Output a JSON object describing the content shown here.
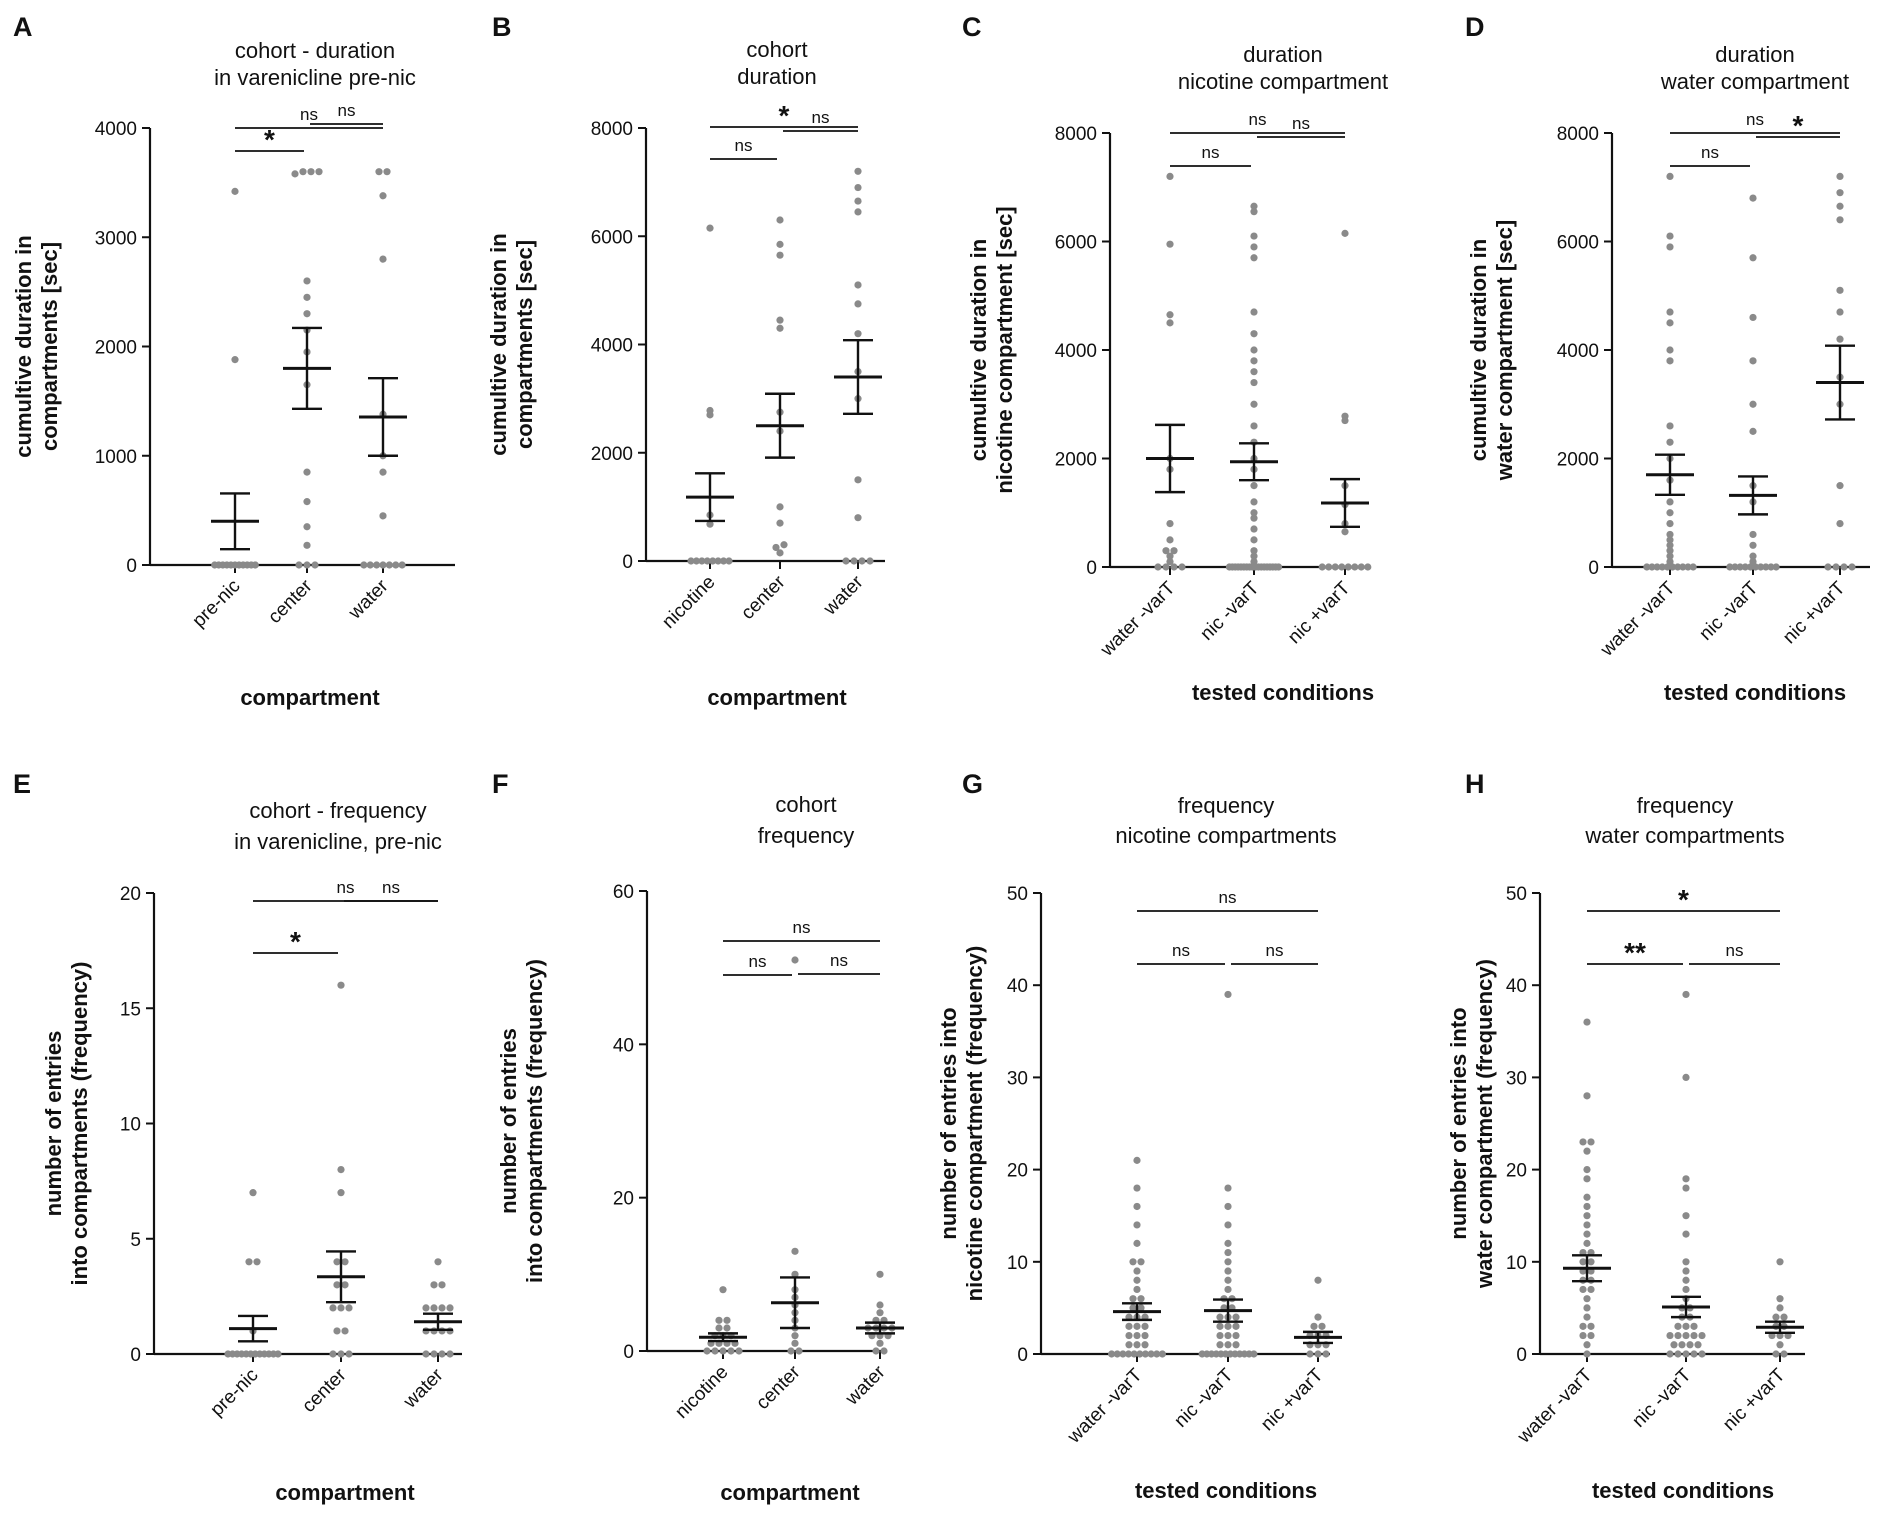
{
  "colors": {
    "axis": "#111111",
    "points": "#8a8a8a",
    "mean_bar": "#111111"
  },
  "chart_data": [
    {
      "panel": "A",
      "type": "scatter",
      "title": [
        "cohort - duration",
        "in varenicline pre-nic"
      ],
      "ylabel": [
        "cumultive duration in",
        "compartments [sec]"
      ],
      "xlabel": "compartment",
      "categories": [
        "pre-nic",
        "center",
        "water"
      ],
      "ylim": [
        0,
        4000
      ],
      "yticks": [
        0,
        1000,
        2000,
        3000,
        4000
      ],
      "points": [
        [
          0,
          0,
          0,
          0,
          0,
          0,
          0,
          0,
          0,
          0,
          0,
          1880,
          3420
        ],
        [
          0,
          0,
          0,
          180,
          350,
          580,
          850,
          1650,
          1950,
          2150,
          2300,
          2450,
          2600,
          3580,
          3600,
          3600,
          3600
        ],
        [
          0,
          0,
          0,
          0,
          0,
          0,
          0,
          450,
          850,
          1000,
          1380,
          2800,
          3380,
          3600,
          3600
        ]
      ],
      "mean": [
        400,
        1800,
        1355
      ],
      "sem": [
        255,
        370,
        355
      ],
      "comparisons": [
        {
          "from": 0,
          "to": 1,
          "label": "*"
        },
        {
          "from": 1,
          "to": 2,
          "label": "ns"
        },
        {
          "from": 0,
          "to": 2,
          "label": "ns"
        }
      ]
    },
    {
      "panel": "B",
      "type": "scatter",
      "title": [
        "cohort",
        "duration"
      ],
      "ylabel": [
        "cumultive duration in",
        "compartments [sec]"
      ],
      "xlabel": "compartment",
      "categories": [
        "nicotine",
        "center",
        "water"
      ],
      "ylim": [
        0,
        8000
      ],
      "yticks": [
        0,
        2000,
        4000,
        6000,
        8000
      ],
      "points": [
        [
          0,
          0,
          0,
          0,
          0,
          0,
          0,
          0,
          680,
          850,
          2700,
          2780,
          6150
        ],
        [
          150,
          250,
          300,
          700,
          1000,
          2400,
          2750,
          4300,
          4450,
          5650,
          5850,
          6300
        ],
        [
          0,
          0,
          0,
          0,
          800,
          1500,
          3000,
          3500,
          4200,
          4750,
          5100,
          6450,
          6650,
          6900,
          7200
        ]
      ],
      "mean": [
        1180,
        2500,
        3400
      ],
      "sem": [
        440,
        590,
        680
      ],
      "comparisons": [
        {
          "from": 0,
          "to": 1,
          "label": "ns"
        },
        {
          "from": 1,
          "to": 2,
          "label": "ns"
        },
        {
          "from": 0,
          "to": 2,
          "label": "*"
        }
      ]
    },
    {
      "panel": "C",
      "type": "scatter",
      "title": [
        "duration",
        "nicotine compartment"
      ],
      "ylabel": [
        "cumultive duration in",
        "nicotine compartment [sec]"
      ],
      "xlabel": "tested conditions",
      "categories": [
        "water -varT",
        "nic -varT",
        "nic +varT"
      ],
      "ylim": [
        0,
        8000
      ],
      "yticks": [
        0,
        2000,
        4000,
        6000,
        8000
      ],
      "points": [
        [
          0,
          0,
          0,
          0,
          100,
          200,
          300,
          300,
          500,
          800,
          1800,
          2000,
          4500,
          4650,
          5950,
          7200
        ],
        [
          0,
          0,
          0,
          0,
          0,
          0,
          0,
          0,
          0,
          0,
          0,
          0,
          0,
          0,
          0,
          0,
          0,
          0,
          100,
          200,
          300,
          500,
          700,
          900,
          1000,
          1200,
          1500,
          1800,
          2000,
          2300,
          2600,
          3000,
          3400,
          3600,
          3800,
          4000,
          4300,
          4700,
          5700,
          5900,
          6100,
          6550,
          6650
        ],
        [
          0,
          0,
          0,
          0,
          0,
          0,
          0,
          0,
          650,
          800,
          1150,
          1500,
          2700,
          2780,
          6150
        ]
      ],
      "mean": [
        2000,
        1940,
        1180
      ],
      "sem": [
        620,
        340,
        440
      ],
      "comparisons": [
        {
          "from": 0,
          "to": 1,
          "label": "ns"
        },
        {
          "from": 1,
          "to": 2,
          "label": "ns"
        },
        {
          "from": 0,
          "to": 2,
          "label": "ns"
        }
      ]
    },
    {
      "panel": "D",
      "type": "scatter",
      "title": [
        "duration",
        "water compartment"
      ],
      "ylabel": [
        "cumultive duration in",
        "water compartment [sec]"
      ],
      "xlabel": "tested conditions",
      "categories": [
        "water -varT",
        "nic -varT",
        "nic +varT"
      ],
      "ylim": [
        0,
        8000
      ],
      "yticks": [
        0,
        2000,
        4000,
        6000,
        8000
      ],
      "points": [
        [
          0,
          0,
          0,
          0,
          0,
          0,
          0,
          0,
          0,
          0,
          100,
          200,
          300,
          400,
          500,
          600,
          800,
          1000,
          1200,
          1600,
          2000,
          2300,
          2600,
          3800,
          4000,
          4500,
          4700,
          5900,
          6100,
          7200
        ],
        [
          0,
          0,
          0,
          0,
          0,
          0,
          0,
          0,
          0,
          0,
          100,
          200,
          400,
          600,
          1200,
          1500,
          2500,
          3000,
          3800,
          4600,
          5700,
          6800
        ],
        [
          0,
          0,
          0,
          0,
          800,
          1500,
          3000,
          3500,
          4200,
          4700,
          5100,
          6400,
          6650,
          6900,
          7200
        ]
      ],
      "mean": [
        1700,
        1320,
        3400
      ],
      "sem": [
        370,
        350,
        680
      ],
      "comparisons": [
        {
          "from": 0,
          "to": 1,
          "label": "ns"
        },
        {
          "from": 1,
          "to": 2,
          "label": "*"
        },
        {
          "from": 0,
          "to": 2,
          "label": "ns"
        }
      ]
    },
    {
      "panel": "E",
      "type": "scatter",
      "title": [
        "cohort - frequency",
        "in varenicline, pre-nic"
      ],
      "ylabel": [
        "number of entries",
        "into compartments (frequency)"
      ],
      "xlabel": "compartment",
      "categories": [
        "pre-nic",
        "center",
        "water"
      ],
      "ylim": [
        0,
        20
      ],
      "yticks": [
        0,
        5,
        10,
        15,
        20
      ],
      "points": [
        [
          0,
          0,
          0,
          0,
          0,
          0,
          0,
          0,
          0,
          0,
          0,
          0,
          1,
          4,
          4,
          7
        ],
        [
          0,
          0,
          0,
          1,
          1,
          2,
          2,
          2,
          3,
          3,
          4,
          4,
          7,
          8,
          16
        ],
        [
          0,
          0,
          0,
          0,
          1,
          1,
          1,
          1,
          2,
          2,
          2,
          2,
          3,
          3,
          4
        ]
      ],
      "mean": [
        1.1,
        3.35,
        1.4
      ],
      "sem": [
        0.55,
        1.1,
        0.35
      ],
      "comparisons": [
        {
          "from": 0,
          "to": 1,
          "label": "*"
        },
        {
          "from": 1,
          "to": 2,
          "label": "ns"
        },
        {
          "from": 0,
          "to": 2,
          "label": "ns"
        }
      ]
    },
    {
      "panel": "F",
      "type": "scatter",
      "title": [
        "cohort",
        "frequency"
      ],
      "ylabel": [
        "number of entries",
        "into compartments (frequency)"
      ],
      "xlabel": "compartment",
      "categories": [
        "nicotine",
        "center",
        "water"
      ],
      "ylim": [
        0,
        60
      ],
      "yticks": [
        0,
        20,
        40,
        60
      ],
      "points": [
        [
          0,
          0,
          0,
          0,
          0,
          1,
          1,
          1,
          1,
          2,
          2,
          2,
          3,
          3,
          4,
          4,
          8
        ],
        [
          0,
          0,
          1,
          2,
          3,
          4,
          5,
          6,
          7,
          8,
          10,
          13,
          51
        ],
        [
          0,
          0,
          1,
          2,
          2,
          2,
          3,
          3,
          3,
          3,
          4,
          4,
          5,
          6,
          10
        ]
      ],
      "mean": [
        1.8,
        6.3,
        3.0
      ],
      "sem": [
        0.5,
        3.3,
        0.7
      ],
      "comparisons": [
        {
          "from": 0,
          "to": 1,
          "label": "ns"
        },
        {
          "from": 1,
          "to": 2,
          "label": "ns"
        },
        {
          "from": 0,
          "to": 2,
          "label": "ns"
        }
      ]
    },
    {
      "panel": "G",
      "type": "scatter",
      "title": [
        "frequency",
        "nicotine compartments"
      ],
      "ylabel": [
        "number of entries into",
        "nicotine compartment (frequency)"
      ],
      "xlabel": "tested conditions",
      "categories": [
        "water -varT",
        "nic -varT",
        "nic +varT"
      ],
      "ylim": [
        0,
        50
      ],
      "yticks": [
        0,
        10,
        20,
        30,
        40,
        50
      ],
      "points": [
        [
          0,
          0,
          0,
          0,
          0,
          0,
          0,
          0,
          0,
          0,
          1,
          1,
          1,
          2,
          2,
          2,
          3,
          3,
          3,
          4,
          4,
          4,
          5,
          5,
          6,
          6,
          7,
          8,
          9,
          10,
          10,
          12,
          14,
          16,
          18,
          21
        ],
        [
          0,
          0,
          0,
          0,
          0,
          0,
          0,
          0,
          0,
          0,
          0,
          0,
          1,
          1,
          1,
          2,
          2,
          2,
          3,
          3,
          3,
          4,
          4,
          4,
          5,
          5,
          6,
          6,
          7,
          8,
          9,
          10,
          11,
          12,
          14,
          16,
          18,
          39
        ],
        [
          0,
          0,
          0,
          1,
          1,
          1,
          2,
          2,
          2,
          3,
          3,
          4,
          8
        ]
      ],
      "mean": [
        4.6,
        4.7,
        1.8
      ],
      "sem": [
        0.9,
        1.2,
        0.6
      ],
      "comparisons": [
        {
          "from": 0,
          "to": 1,
          "label": "ns"
        },
        {
          "from": 1,
          "to": 2,
          "label": "ns"
        },
        {
          "from": 0,
          "to": 2,
          "label": "ns"
        }
      ]
    },
    {
      "panel": "H",
      "type": "scatter",
      "title": [
        "frequency",
        "water compartments"
      ],
      "ylabel": [
        "number of entries into",
        "water compartment (frequency)"
      ],
      "xlabel": "tested conditions",
      "categories": [
        "water -varT",
        "nic -varT",
        "nic +varT"
      ],
      "ylim": [
        0,
        50
      ],
      "yticks": [
        0,
        10,
        20,
        30,
        40,
        50
      ],
      "points": [
        [
          0,
          1,
          2,
          2,
          3,
          3,
          4,
          5,
          6,
          7,
          7,
          8,
          8,
          9,
          9,
          10,
          10,
          11,
          11,
          12,
          13,
          14,
          15,
          16,
          17,
          19,
          20,
          22,
          23,
          23,
          28,
          36
        ],
        [
          0,
          0,
          0,
          0,
          0,
          1,
          1,
          1,
          1,
          2,
          2,
          2,
          2,
          2,
          3,
          3,
          3,
          4,
          4,
          5,
          5,
          6,
          7,
          8,
          9,
          10,
          13,
          15,
          18,
          19,
          30,
          39
        ],
        [
          0,
          0,
          1,
          2,
          2,
          2,
          3,
          3,
          4,
          4,
          5,
          6,
          10
        ]
      ],
      "mean": [
        9.3,
        5.1,
        2.9
      ],
      "sem": [
        1.4,
        1.1,
        0.6
      ],
      "comparisons": [
        {
          "from": 0,
          "to": 1,
          "label": "**"
        },
        {
          "from": 1,
          "to": 2,
          "label": "ns"
        },
        {
          "from": 0,
          "to": 2,
          "label": "*"
        }
      ]
    }
  ]
}
